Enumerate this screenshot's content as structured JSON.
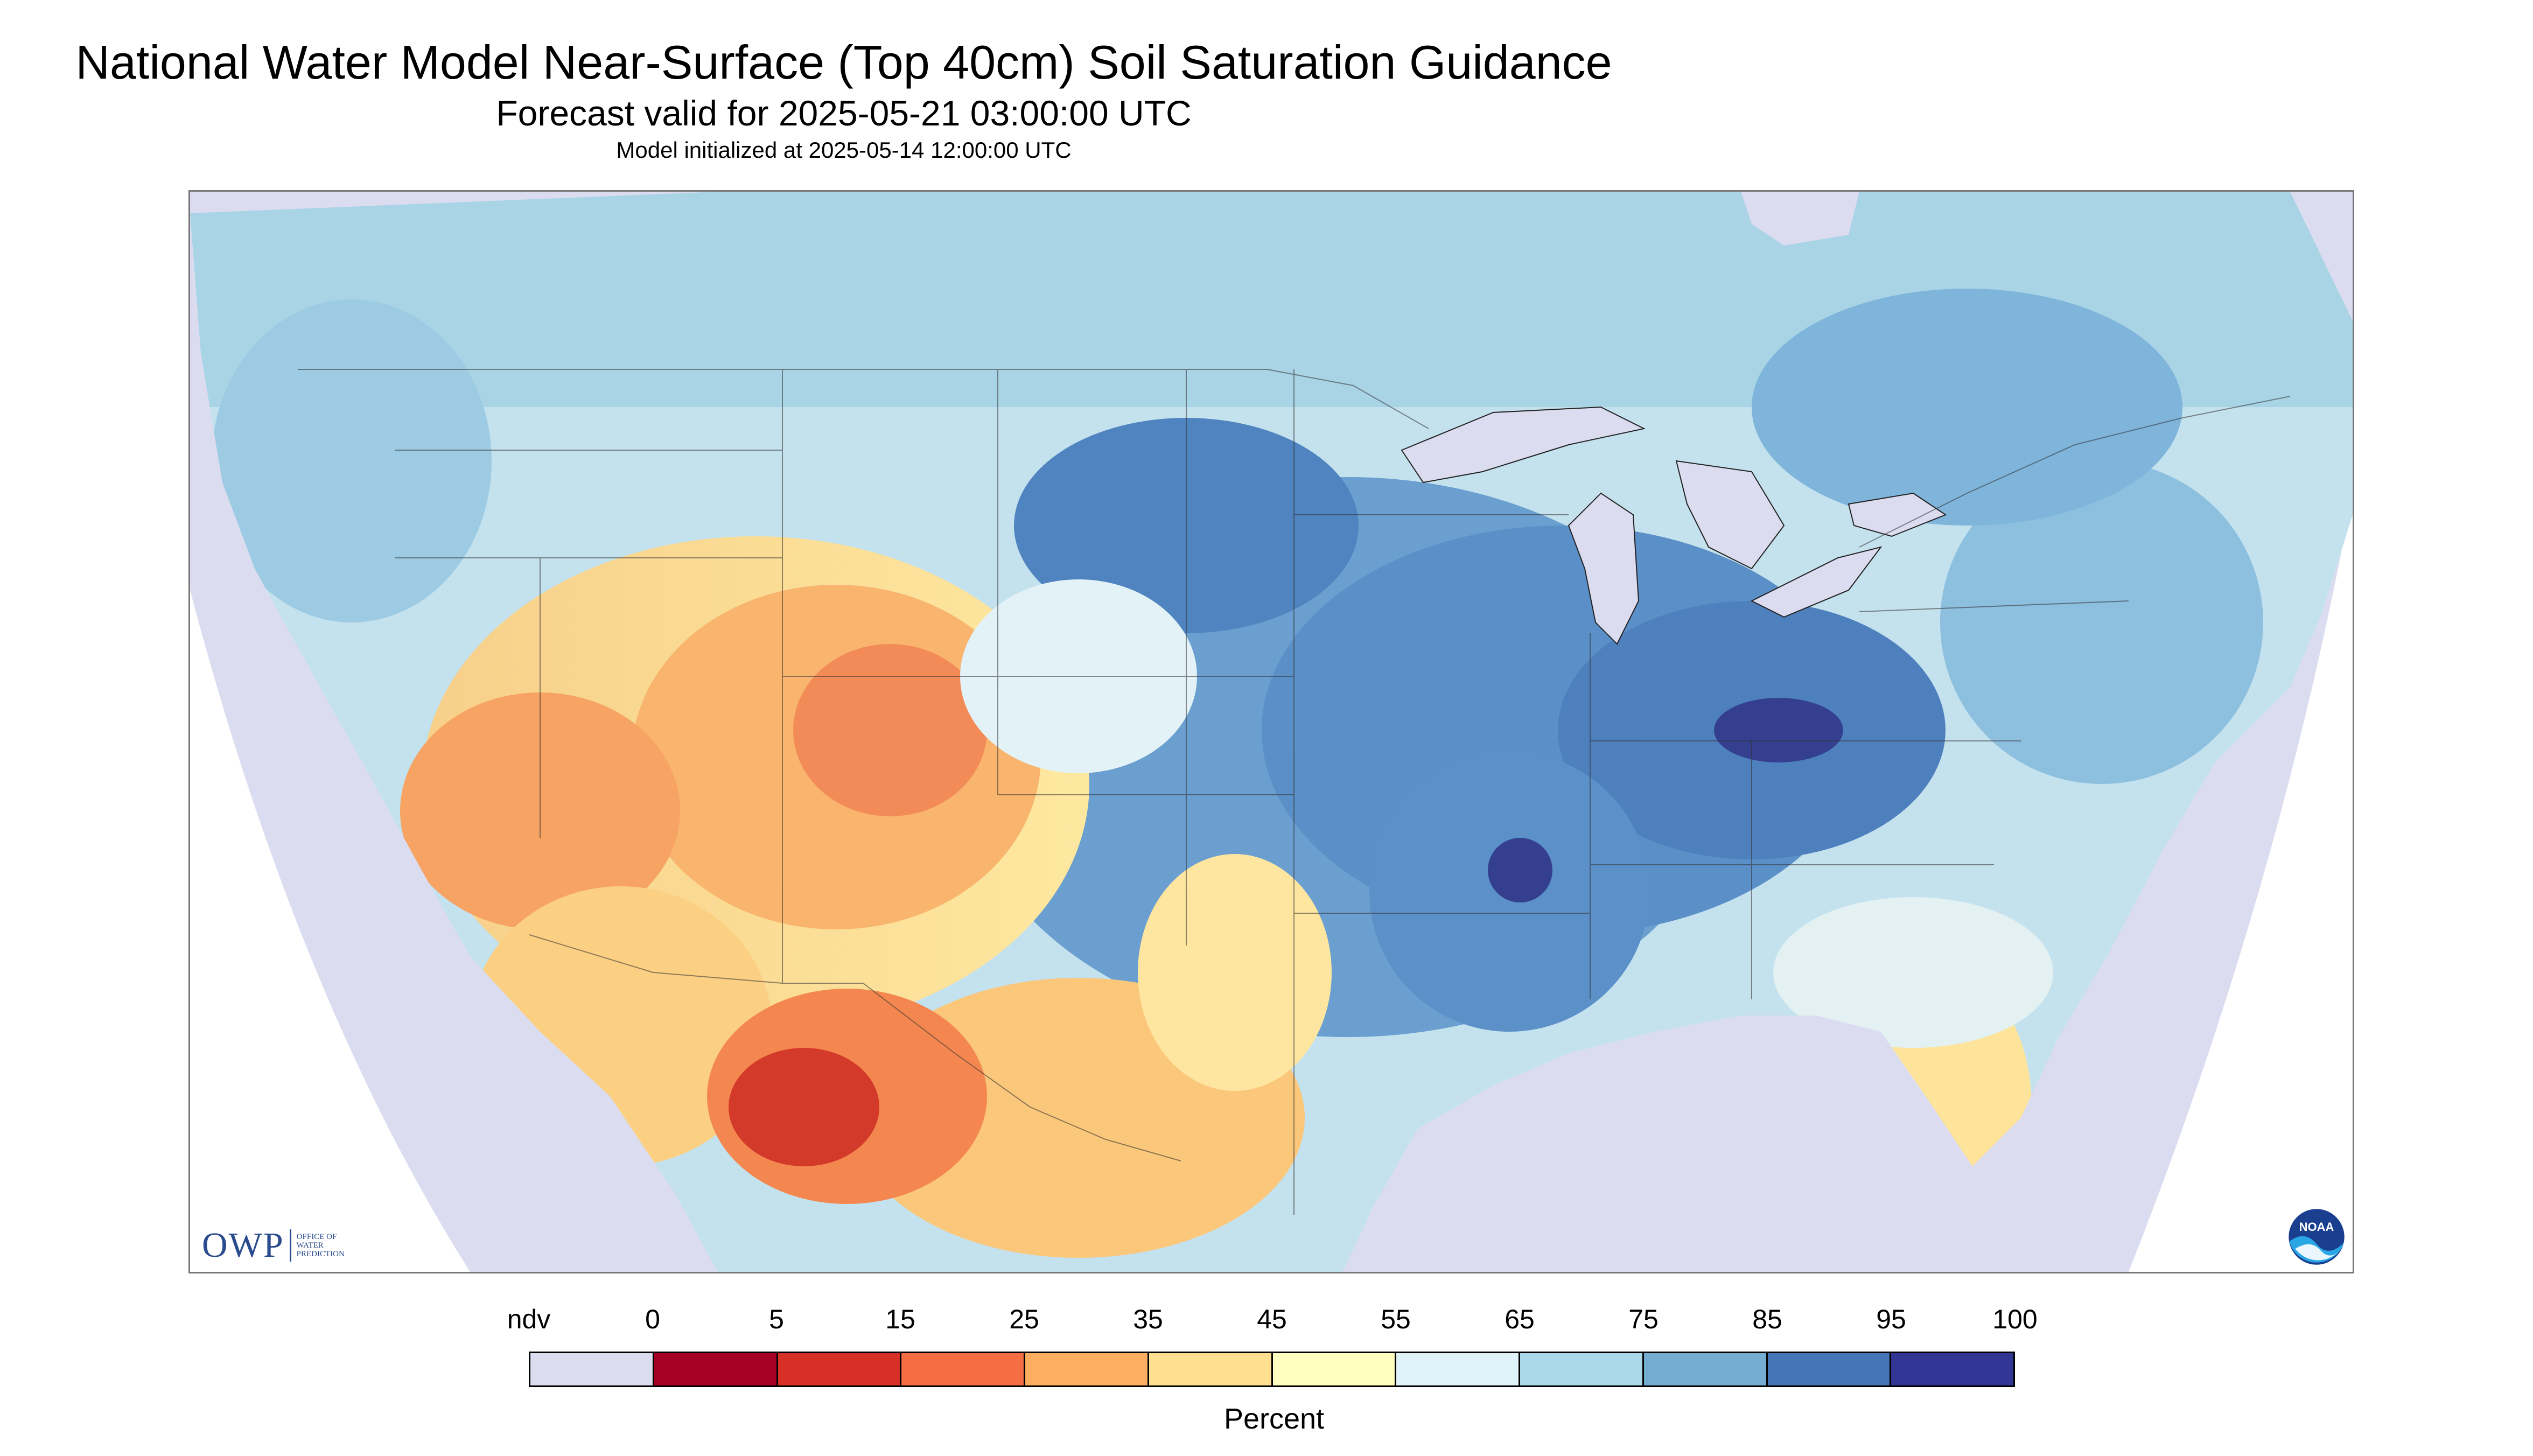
{
  "header": {
    "title": "National Water Model Near-Surface (Top 40cm) Soil Saturation Guidance",
    "subtitle": "Forecast valid for 2025-05-21 03:00:00 UTC",
    "init": "Model initialized at 2025-05-14 12:00:00 UTC"
  },
  "map": {
    "region": "conterminous-us",
    "style": "soil-saturation-raster",
    "background_ndv_color": "#dcdcf0",
    "border_color": "#444444",
    "logo_left": {
      "letters": "OWP",
      "line1": "OFFICE OF",
      "line2": "WATER",
      "line3": "PREDICTION",
      "icon": "owp-logo"
    },
    "logo_right": {
      "icon": "noaa-logo",
      "text": "NOAA"
    }
  },
  "legend": {
    "ndv_label": "ndv",
    "tick_labels": [
      "0",
      "5",
      "15",
      "25",
      "35",
      "45",
      "55",
      "65",
      "75",
      "85",
      "95",
      "100"
    ],
    "colors": [
      "#dcdcf0",
      "#a50026",
      "#d73027",
      "#f46d43",
      "#fdae61",
      "#fee090",
      "#ffffbf",
      "#e0f3f8",
      "#abd9e9",
      "#74add1",
      "#4575b4",
      "#313695"
    ],
    "unit": "Percent"
  }
}
